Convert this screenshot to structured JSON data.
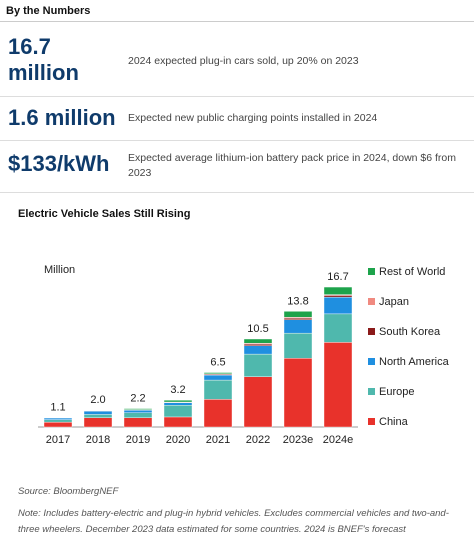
{
  "header": {
    "title": "By the Numbers"
  },
  "stats": [
    {
      "value": "16.7 million",
      "description": "2024 expected plug-in cars sold, up 20% on 2023"
    },
    {
      "value": "1.6 million",
      "description": "Expected new public charging points installed in 2024"
    },
    {
      "value": "$133/kWh",
      "description": "Expected average lithium-ion battery pack price in 2024, down $6 from 2023"
    }
  ],
  "chart_data": {
    "type": "stacked_bar",
    "title": "Electric Vehicle Sales Still Rising",
    "unit_label": "Million",
    "categories": [
      "2017",
      "2018",
      "2019",
      "2020",
      "2021",
      "2022",
      "2023e",
      "2024e"
    ],
    "series": [
      {
        "name": "China",
        "color": "#e8322b",
        "values": [
          0.58,
          1.1,
          1.1,
          1.2,
          3.3,
          6.0,
          8.2,
          10.1
        ]
      },
      {
        "name": "Europe",
        "color": "#4fb8ad",
        "values": [
          0.3,
          0.4,
          0.6,
          1.4,
          2.3,
          2.7,
          3.0,
          3.4
        ]
      },
      {
        "name": "North America",
        "color": "#1f8fe0",
        "values": [
          0.2,
          0.4,
          0.3,
          0.3,
          0.6,
          1.0,
          1.6,
          2.0
        ]
      },
      {
        "name": "South Korea",
        "color": "#8b1a1a",
        "values": [
          0.01,
          0.03,
          0.04,
          0.05,
          0.1,
          0.2,
          0.2,
          0.2
        ]
      },
      {
        "name": "Japan",
        "color": "#f08a80",
        "values": [
          0.01,
          0.05,
          0.04,
          0.03,
          0.05,
          0.1,
          0.1,
          0.1
        ]
      },
      {
        "name": "Rest of World",
        "color": "#1da34b",
        "values": [
          0,
          0.02,
          0.12,
          0.22,
          0.15,
          0.5,
          0.7,
          0.9
        ]
      }
    ],
    "totals": [
      1.1,
      2,
      2.2,
      3.2,
      6.5,
      10.5,
      13.8,
      16.7
    ],
    "total_labels": [
      "1.1",
      "2.0",
      "2.2",
      "3.2",
      "6.5",
      "10.5",
      "13.8",
      "16.7"
    ],
    "ylim": [
      0,
      20
    ]
  },
  "footer": {
    "source": "Source: BloombergNEF",
    "note": "Note: Includes battery-electric and plug-in hybrid vehicles. Excludes commercial vehicles and two-and-three wheelers. December 2023 data estimated for some countries. 2024 is BNEF's forecast"
  }
}
